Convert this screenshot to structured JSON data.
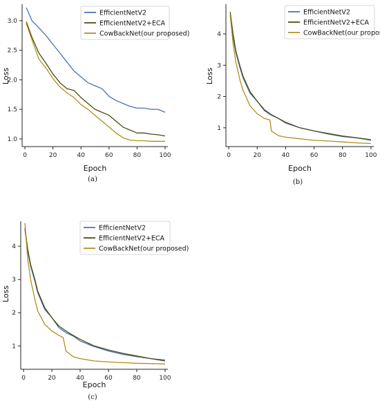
{
  "chart_data": [
    {
      "type": "line",
      "caption": "(a)",
      "xlabel": "Epoch",
      "ylabel": "Loss",
      "xlim": [
        -2,
        102
      ],
      "ylim": [
        0.87,
        3.28
      ],
      "xticks": [
        0,
        20,
        40,
        60,
        80,
        100
      ],
      "yticks": [
        1.0,
        1.5,
        2.0,
        2.5,
        3.0
      ],
      "ytick_labels": [
        "1.0",
        "1.5",
        "2.0",
        "2.5",
        "3.0"
      ],
      "legend": "top-right",
      "series": [
        {
          "name": "EfficientNetV2",
          "color": "#4a6fb5",
          "x": [
            1,
            5,
            10,
            15,
            20,
            25,
            30,
            35,
            40,
            45,
            50,
            55,
            60,
            65,
            70,
            75,
            80,
            85,
            90,
            95,
            100
          ],
          "y": [
            3.22,
            3.0,
            2.88,
            2.75,
            2.6,
            2.45,
            2.3,
            2.15,
            2.05,
            1.95,
            1.9,
            1.85,
            1.72,
            1.65,
            1.6,
            1.55,
            1.52,
            1.52,
            1.5,
            1.5,
            1.45
          ]
        },
        {
          "name": "EfficientNetV2+ECA",
          "color": "#4c4a10",
          "x": [
            1,
            5,
            10,
            15,
            20,
            25,
            30,
            35,
            40,
            45,
            50,
            55,
            60,
            65,
            70,
            75,
            80,
            85,
            90,
            95,
            100
          ],
          "y": [
            2.98,
            2.72,
            2.45,
            2.28,
            2.1,
            1.95,
            1.85,
            1.82,
            1.7,
            1.6,
            1.5,
            1.45,
            1.4,
            1.3,
            1.2,
            1.15,
            1.1,
            1.1,
            1.08,
            1.07,
            1.05
          ]
        },
        {
          "name": "CowBackNet(our proposed)",
          "color": "#b08d1e",
          "x": [
            1,
            5,
            10,
            15,
            20,
            25,
            30,
            35,
            40,
            45,
            50,
            55,
            60,
            65,
            70,
            75,
            80,
            85,
            90,
            95,
            100
          ],
          "y": [
            2.95,
            2.68,
            2.35,
            2.2,
            2.02,
            1.88,
            1.78,
            1.7,
            1.58,
            1.5,
            1.4,
            1.3,
            1.2,
            1.1,
            1.02,
            0.98,
            0.97,
            0.97,
            0.96,
            0.96,
            0.96
          ]
        }
      ]
    },
    {
      "type": "line",
      "caption": "(b)",
      "xlabel": "Epoch",
      "ylabel": "Loss",
      "xlim": [
        -2,
        102
      ],
      "ylim": [
        0.4,
        4.95
      ],
      "xticks": [
        0,
        20,
        40,
        60,
        80,
        100
      ],
      "yticks": [
        1,
        2,
        3,
        4
      ],
      "ytick_labels": [
        "1",
        "2",
        "3",
        "4"
      ],
      "legend": "top-right",
      "series": [
        {
          "name": "EfficientNetV2",
          "color": "#4a6fb5",
          "x": [
            1,
            3,
            5,
            8,
            10,
            15,
            20,
            25,
            30,
            35,
            40,
            50,
            60,
            70,
            80,
            90,
            100
          ],
          "y": [
            4.6,
            3.9,
            3.4,
            2.9,
            2.6,
            2.1,
            1.85,
            1.55,
            1.4,
            1.3,
            1.15,
            1.0,
            0.9,
            0.8,
            0.72,
            0.68,
            0.6
          ]
        },
        {
          "name": "EfficientNetV2+ECA",
          "color": "#4c4a10",
          "x": [
            1,
            3,
            5,
            8,
            10,
            15,
            20,
            25,
            30,
            35,
            40,
            50,
            60,
            70,
            80,
            90,
            100
          ],
          "y": [
            4.7,
            4.0,
            3.45,
            2.95,
            2.65,
            2.15,
            1.85,
            1.58,
            1.42,
            1.3,
            1.18,
            1.0,
            0.9,
            0.82,
            0.74,
            0.68,
            0.62
          ]
        },
        {
          "name": "CowBackNet(our proposed)",
          "color": "#b08d1e",
          "x": [
            1,
            3,
            5,
            8,
            10,
            15,
            20,
            25,
            29,
            30,
            35,
            40,
            50,
            60,
            70,
            80,
            90,
            100
          ],
          "y": [
            4.6,
            3.7,
            3.1,
            2.5,
            2.2,
            1.7,
            1.45,
            1.3,
            1.25,
            0.9,
            0.75,
            0.7,
            0.65,
            0.6,
            0.58,
            0.55,
            0.52,
            0.5
          ]
        }
      ]
    },
    {
      "type": "line",
      "caption": "(c)",
      "xlabel": "Epoch",
      "ylabel": "Loss",
      "xlim": [
        -2,
        102
      ],
      "ylim": [
        0.3,
        4.75
      ],
      "xticks": [
        0,
        20,
        40,
        60,
        80,
        100
      ],
      "yticks": [
        1,
        2,
        3,
        4
      ],
      "ytick_labels": [
        "1",
        "2",
        "3",
        "4"
      ],
      "legend": "top-right",
      "series": [
        {
          "name": "EfficientNetV2",
          "color": "#4a6fb5",
          "x": [
            1,
            3,
            5,
            8,
            10,
            15,
            20,
            25,
            30,
            35,
            40,
            50,
            60,
            70,
            80,
            90,
            100
          ],
          "y": [
            4.5,
            3.85,
            3.4,
            2.95,
            2.6,
            2.1,
            1.85,
            1.55,
            1.4,
            1.3,
            1.15,
            0.98,
            0.85,
            0.75,
            0.68,
            0.62,
            0.58
          ]
        },
        {
          "name": "EfficientNetV2+ECA",
          "color": "#4c4a10",
          "x": [
            1,
            3,
            5,
            8,
            10,
            15,
            20,
            25,
            30,
            35,
            40,
            50,
            60,
            70,
            80,
            90,
            100
          ],
          "y": [
            4.55,
            3.9,
            3.45,
            3.0,
            2.65,
            2.15,
            1.85,
            1.6,
            1.45,
            1.32,
            1.2,
            1.0,
            0.88,
            0.78,
            0.7,
            0.62,
            0.55
          ]
        },
        {
          "name": "CowBackNet(our proposed)",
          "color": "#b08d1e",
          "x": [
            1,
            3,
            5,
            8,
            10,
            15,
            20,
            25,
            28,
            30,
            35,
            40,
            50,
            60,
            70,
            80,
            90,
            100
          ],
          "y": [
            4.7,
            3.6,
            3.0,
            2.4,
            2.05,
            1.65,
            1.45,
            1.32,
            1.25,
            0.85,
            0.68,
            0.62,
            0.55,
            0.52,
            0.5,
            0.48,
            0.47,
            0.46
          ]
        }
      ]
    }
  ]
}
